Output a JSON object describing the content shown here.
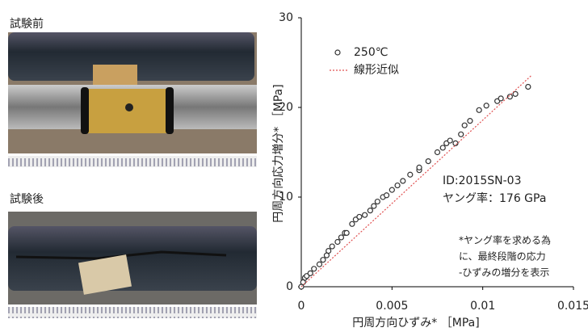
{
  "photos": {
    "before_label": "試験前",
    "after_label": "試験後"
  },
  "chart_data": {
    "type": "scatter",
    "xlabel": "円周方向ひずみ* ［MPa]",
    "ylabel": "円周方向応力増分* ［MPa]",
    "xlim": [
      0,
      0.015
    ],
    "ylim": [
      0,
      30
    ],
    "xticks": [
      0,
      0.005,
      0.01,
      0.015
    ],
    "yticks": [
      0,
      10,
      20,
      30
    ],
    "grid": false,
    "series": [
      {
        "name": "250℃",
        "type": "scatter",
        "color": "#333333",
        "x": [
          0,
          0.0001,
          0.0002,
          0.0003,
          0.0005,
          0.0007,
          0.001,
          0.0012,
          0.0014,
          0.0015,
          0.0017,
          0.002,
          0.0022,
          0.0024,
          0.0025,
          0.0028,
          0.003,
          0.0032,
          0.0035,
          0.0038,
          0.004,
          0.0042,
          0.0045,
          0.0047,
          0.005,
          0.0053,
          0.0056,
          0.006,
          0.0065,
          0.0065,
          0.007,
          0.0075,
          0.0078,
          0.008,
          0.0082,
          0.0085,
          0.0088,
          0.009,
          0.0093,
          0.0098,
          0.0102,
          0.0108,
          0.011,
          0.0115,
          0.0118,
          0.0125
        ],
        "values": [
          0,
          0.5,
          1,
          1.2,
          1.5,
          2,
          2.5,
          3,
          3.5,
          4,
          4.5,
          5,
          5.5,
          6,
          6,
          7,
          7.5,
          7.8,
          8,
          8.5,
          9,
          9.5,
          10,
          10.2,
          10.8,
          11.3,
          11.8,
          12.5,
          13,
          13.3,
          14,
          15,
          15.5,
          16,
          16.3,
          16,
          17,
          18,
          18.5,
          19.7,
          20.2,
          20.7,
          21,
          21.2,
          21.5,
          22.3
        ]
      },
      {
        "name": "線形近似",
        "type": "line",
        "color": "#e05050",
        "x": [
          0,
          0.0127
        ],
        "values": [
          0,
          23.6
        ]
      }
    ],
    "legend": "upper left",
    "annotations": [
      "ID:2015SN-03",
      "ヤング率：176 GPa",
      "*ヤング率を求める為",
      "に、最終段階の応力",
      "-ひずみの増分を表示"
    ]
  }
}
